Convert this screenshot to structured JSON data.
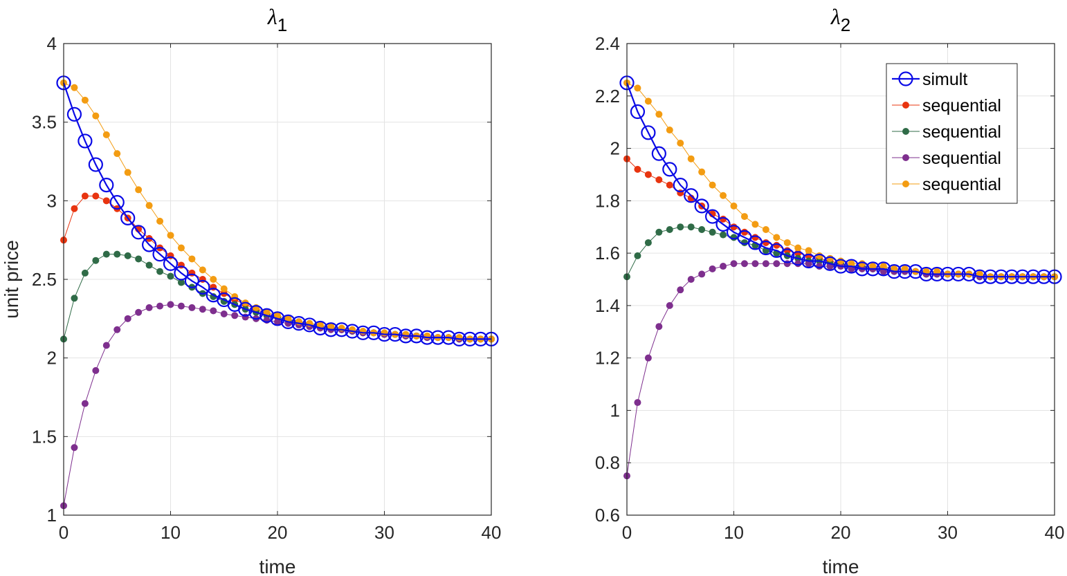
{
  "chart_data": [
    {
      "type": "line",
      "title": "λ",
      "title_subscript": "1",
      "xlabel": "time",
      "ylabel": "unit price",
      "xlim": [
        0,
        40
      ],
      "ylim": [
        1,
        4
      ],
      "xticks": [
        0,
        10,
        20,
        30,
        40
      ],
      "yticks": [
        1,
        1.5,
        2,
        2.5,
        3,
        3.5,
        4
      ],
      "xtick_labels": [
        "0",
        "10",
        "20",
        "30",
        "40"
      ],
      "ytick_labels": [
        "1",
        "1.5",
        "2",
        "2.5",
        "3",
        "3.5",
        "4"
      ],
      "grid": true,
      "legend": false,
      "x": [
        0,
        1,
        2,
        3,
        4,
        5,
        6,
        7,
        8,
        9,
        10,
        11,
        12,
        13,
        14,
        15,
        16,
        17,
        18,
        19,
        20,
        21,
        22,
        23,
        24,
        25,
        26,
        27,
        28,
        29,
        30,
        31,
        32,
        33,
        34,
        35,
        36,
        37,
        38,
        39,
        40
      ],
      "series": [
        {
          "name": "sequential",
          "color": "#e8340f",
          "marker": "dot",
          "values": [
            2.75,
            2.95,
            3.03,
            3.03,
            3.0,
            2.95,
            2.89,
            2.82,
            2.76,
            2.7,
            2.65,
            2.59,
            2.54,
            2.5,
            2.45,
            2.41,
            2.37,
            2.34,
            2.31,
            2.28,
            2.26,
            2.24,
            2.23,
            2.21,
            2.2,
            2.19,
            2.18,
            2.17,
            2.16,
            2.16,
            2.15,
            2.15,
            2.14,
            2.14,
            2.13,
            2.13,
            2.13,
            2.12,
            2.12,
            2.12,
            2.12
          ]
        },
        {
          "name": "sequential",
          "color": "#2f6b47",
          "marker": "dot",
          "values": [
            2.12,
            2.38,
            2.54,
            2.62,
            2.66,
            2.66,
            2.65,
            2.63,
            2.59,
            2.55,
            2.52,
            2.48,
            2.45,
            2.41,
            2.39,
            2.36,
            2.34,
            2.31,
            2.29,
            2.27,
            2.26,
            2.24,
            2.23,
            2.21,
            2.2,
            2.19,
            2.18,
            2.17,
            2.16,
            2.16,
            2.15,
            2.15,
            2.14,
            2.14,
            2.13,
            2.13,
            2.13,
            2.12,
            2.12,
            2.12,
            2.12
          ]
        },
        {
          "name": "sequential",
          "color": "#7e2f8e",
          "marker": "dot",
          "values": [
            1.06,
            1.43,
            1.71,
            1.92,
            2.08,
            2.18,
            2.25,
            2.29,
            2.32,
            2.33,
            2.34,
            2.33,
            2.32,
            2.31,
            2.3,
            2.28,
            2.27,
            2.26,
            2.25,
            2.24,
            2.23,
            2.22,
            2.21,
            2.2,
            2.19,
            2.18,
            2.18,
            2.17,
            2.16,
            2.16,
            2.15,
            2.15,
            2.14,
            2.14,
            2.13,
            2.13,
            2.13,
            2.12,
            2.12,
            2.12,
            2.12
          ]
        },
        {
          "name": "sequential",
          "color": "#f39c12",
          "marker": "dot",
          "values": [
            3.75,
            3.72,
            3.64,
            3.54,
            3.42,
            3.3,
            3.18,
            3.07,
            2.97,
            2.87,
            2.78,
            2.7,
            2.63,
            2.56,
            2.5,
            2.44,
            2.39,
            2.35,
            2.32,
            2.29,
            2.27,
            2.25,
            2.23,
            2.22,
            2.21,
            2.2,
            2.19,
            2.18,
            2.17,
            2.16,
            2.16,
            2.15,
            2.15,
            2.14,
            2.14,
            2.13,
            2.13,
            2.13,
            2.12,
            2.12,
            2.12
          ]
        },
        {
          "name": "simult",
          "color": "#0a0ae6",
          "marker": "circle",
          "values": [
            3.75,
            3.55,
            3.38,
            3.23,
            3.1,
            2.99,
            2.89,
            2.8,
            2.72,
            2.66,
            2.6,
            2.54,
            2.49,
            2.45,
            2.4,
            2.37,
            2.34,
            2.31,
            2.29,
            2.27,
            2.25,
            2.23,
            2.22,
            2.21,
            2.19,
            2.18,
            2.18,
            2.17,
            2.16,
            2.16,
            2.15,
            2.15,
            2.14,
            2.14,
            2.13,
            2.13,
            2.13,
            2.12,
            2.12,
            2.12,
            2.12
          ]
        }
      ]
    },
    {
      "type": "line",
      "title": "λ",
      "title_subscript": "2",
      "xlabel": "time",
      "ylabel": "",
      "xlim": [
        0,
        40
      ],
      "ylim": [
        0.6,
        2.4
      ],
      "xticks": [
        0,
        10,
        20,
        30,
        40
      ],
      "yticks": [
        0.6,
        0.8,
        1,
        1.2,
        1.4,
        1.6,
        1.8,
        2,
        2.2,
        2.4
      ],
      "xtick_labels": [
        "0",
        "10",
        "20",
        "30",
        "40"
      ],
      "ytick_labels": [
        "0.6",
        "0.8",
        "1",
        "1.2",
        "1.4",
        "1.6",
        "1.8",
        "2",
        "2.2",
        "2.4"
      ],
      "grid": true,
      "legend": true,
      "legend_location": "top-right",
      "legend_entries": [
        "simult",
        "sequential",
        "sequential",
        "sequential",
        "sequential"
      ],
      "x": [
        0,
        1,
        2,
        3,
        4,
        5,
        6,
        7,
        8,
        9,
        10,
        11,
        12,
        13,
        14,
        15,
        16,
        17,
        18,
        19,
        20,
        21,
        22,
        23,
        24,
        25,
        26,
        27,
        28,
        29,
        30,
        31,
        32,
        33,
        34,
        35,
        36,
        37,
        38,
        39,
        40
      ],
      "series": [
        {
          "name": "sequential",
          "color": "#e8340f",
          "marker": "dot",
          "values": [
            1.96,
            1.92,
            1.9,
            1.88,
            1.86,
            1.83,
            1.81,
            1.78,
            1.75,
            1.73,
            1.7,
            1.68,
            1.66,
            1.64,
            1.63,
            1.61,
            1.6,
            1.59,
            1.58,
            1.57,
            1.56,
            1.55,
            1.55,
            1.54,
            1.54,
            1.53,
            1.53,
            1.53,
            1.52,
            1.52,
            1.52,
            1.52,
            1.52,
            1.51,
            1.51,
            1.51,
            1.51,
            1.51,
            1.51,
            1.51,
            1.51
          ]
        },
        {
          "name": "sequential",
          "color": "#2f6b47",
          "marker": "dot",
          "values": [
            1.51,
            1.59,
            1.64,
            1.68,
            1.69,
            1.7,
            1.7,
            1.69,
            1.68,
            1.67,
            1.66,
            1.64,
            1.63,
            1.61,
            1.6,
            1.59,
            1.58,
            1.57,
            1.57,
            1.56,
            1.56,
            1.55,
            1.55,
            1.54,
            1.54,
            1.53,
            1.53,
            1.53,
            1.52,
            1.52,
            1.52,
            1.52,
            1.52,
            1.51,
            1.51,
            1.51,
            1.51,
            1.51,
            1.51,
            1.51,
            1.51
          ]
        },
        {
          "name": "sequential",
          "color": "#7e2f8e",
          "marker": "dot",
          "values": [
            0.75,
            1.03,
            1.2,
            1.32,
            1.4,
            1.46,
            1.5,
            1.52,
            1.54,
            1.55,
            1.56,
            1.56,
            1.56,
            1.56,
            1.56,
            1.56,
            1.56,
            1.56,
            1.55,
            1.55,
            1.55,
            1.54,
            1.54,
            1.54,
            1.53,
            1.53,
            1.53,
            1.53,
            1.52,
            1.52,
            1.52,
            1.52,
            1.52,
            1.51,
            1.51,
            1.51,
            1.51,
            1.51,
            1.51,
            1.51,
            1.51
          ]
        },
        {
          "name": "sequential",
          "color": "#f39c12",
          "marker": "dot",
          "values": [
            2.25,
            2.23,
            2.18,
            2.13,
            2.07,
            2.02,
            1.96,
            1.91,
            1.86,
            1.82,
            1.78,
            1.74,
            1.71,
            1.69,
            1.66,
            1.64,
            1.62,
            1.61,
            1.59,
            1.58,
            1.57,
            1.56,
            1.56,
            1.55,
            1.55,
            1.54,
            1.54,
            1.53,
            1.53,
            1.53,
            1.52,
            1.52,
            1.52,
            1.52,
            1.51,
            1.51,
            1.51,
            1.51,
            1.51,
            1.51,
            1.51
          ]
        },
        {
          "name": "simult",
          "color": "#0a0ae6",
          "marker": "circle",
          "values": [
            2.25,
            2.14,
            2.06,
            1.98,
            1.92,
            1.86,
            1.82,
            1.78,
            1.74,
            1.71,
            1.68,
            1.66,
            1.64,
            1.62,
            1.61,
            1.59,
            1.58,
            1.57,
            1.57,
            1.56,
            1.55,
            1.55,
            1.54,
            1.54,
            1.54,
            1.53,
            1.53,
            1.53,
            1.52,
            1.52,
            1.52,
            1.52,
            1.52,
            1.51,
            1.51,
            1.51,
            1.51,
            1.51,
            1.51,
            1.51,
            1.51
          ]
        }
      ]
    }
  ]
}
